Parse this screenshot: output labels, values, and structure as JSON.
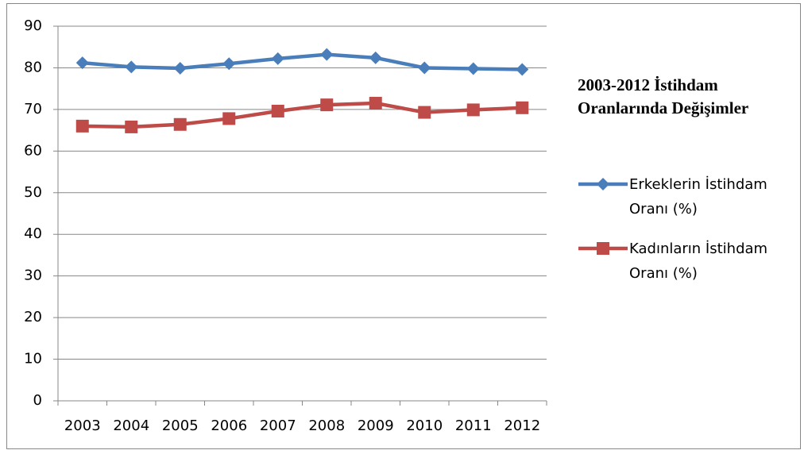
{
  "chart_data": {
    "type": "line",
    "title": "2003-2012 İstihdam Oranlarında Değişimler",
    "categories": [
      "2003",
      "2004",
      "2005",
      "2006",
      "2007",
      "2008",
      "2009",
      "2010",
      "2011",
      "2012"
    ],
    "series": [
      {
        "name": "Erkeklerin İstihdam Oranı (%)",
        "color": "#4a7ebb",
        "marker": "diamond",
        "values": [
          81.2,
          80.2,
          79.9,
          81.0,
          82.2,
          83.2,
          82.4,
          80.0,
          79.8,
          79.6
        ]
      },
      {
        "name": "Kadınların İstihdam Oranı (%)",
        "color": "#be4b48",
        "marker": "square",
        "values": [
          66.0,
          65.8,
          66.4,
          67.8,
          69.6,
          71.1,
          71.5,
          69.3,
          69.9,
          70.4
        ]
      }
    ],
    "ylim": [
      0,
      90
    ],
    "yticks": [
      0,
      10,
      20,
      30,
      40,
      50,
      60,
      70,
      80,
      90
    ],
    "grid": true,
    "legend": "right"
  }
}
